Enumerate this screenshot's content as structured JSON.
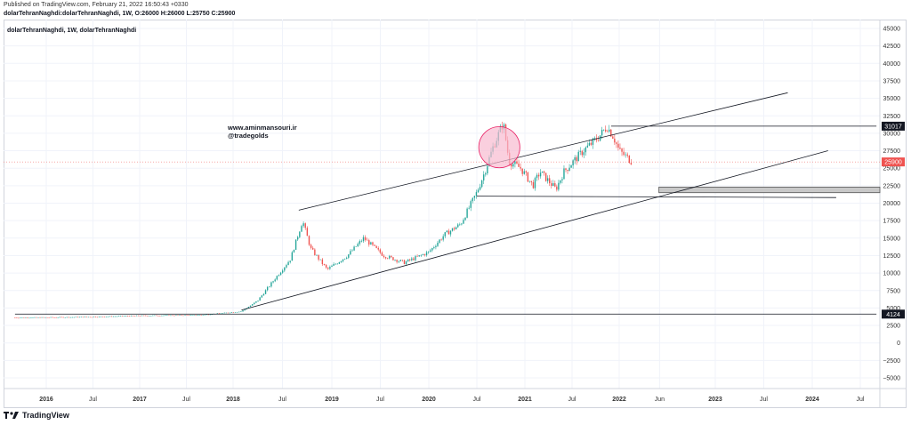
{
  "header": {
    "published": "Published on TradingView.com, February 21, 2022 16:50:43 +0330",
    "ohlc": "dolarTehranNaghdi:dolarTehranNaghdi, 1W, O:26000 H:26000 L:25750 C:25900"
  },
  "footer": {
    "brand": "TradingView"
  },
  "colors": {
    "up": "#26a69a",
    "down": "#ef5350",
    "line": "#131722",
    "circle_fill": "#f8bbd0",
    "circle_stroke": "#e91e63",
    "last_price_label": "#ef5350"
  },
  "chart_data": {
    "type": "candlestick",
    "title": "dolarTehranNaghdi, 1W, dolarTehranNaghdi",
    "watermark_lines": [
      "www.aminmansouri.ir",
      "@tradegolds"
    ],
    "x_tick_labels": [
      "2016",
      "Jul",
      "2017",
      "Jul",
      "2018",
      "Jul",
      "2019",
      "Jul",
      "2020",
      "Jul",
      "2021",
      "Jul",
      "2022",
      "Jun",
      "2023",
      "Jul",
      "2024",
      "Jul"
    ],
    "y_tick_labels": [
      "45000",
      "42500",
      "40000",
      "37500",
      "35000",
      "32500",
      "30000",
      "27500",
      "25000",
      "22500",
      "20000",
      "17500",
      "15000",
      "12500",
      "10000",
      "7500",
      "5000",
      "2500",
      "0",
      "−2500",
      "−5000"
    ],
    "ylim": [
      -6000,
      46000
    ],
    "grid": true,
    "last_price": 25900,
    "price_labels": [
      "31017",
      "25900",
      "4124"
    ],
    "close_series": {
      "start": "2015-09",
      "step": "1 week",
      "anchors": [
        [
          "2015-09-01",
          3600
        ],
        [
          "2016-06-01",
          3700
        ],
        [
          "2017-01-01",
          3900
        ],
        [
          "2017-09-01",
          4000
        ],
        [
          "2018-02-01",
          4500
        ],
        [
          "2018-04-01",
          6000
        ],
        [
          "2018-06-01",
          9000
        ],
        [
          "2018-08-01",
          12000
        ],
        [
          "2018-09-15",
          17500
        ],
        [
          "2018-10-15",
          13500
        ],
        [
          "2018-12-15",
          10500
        ],
        [
          "2019-03-01",
          12500
        ],
        [
          "2019-05-01",
          15000
        ],
        [
          "2019-07-15",
          12500
        ],
        [
          "2019-10-01",
          11500
        ],
        [
          "2020-01-01",
          13000
        ],
        [
          "2020-03-01",
          15500
        ],
        [
          "2020-05-01",
          17000
        ],
        [
          "2020-07-01",
          21500
        ],
        [
          "2020-08-01",
          24500
        ],
        [
          "2020-09-01",
          28000
        ],
        [
          "2020-10-10",
          31500
        ],
        [
          "2020-11-01",
          26000
        ],
        [
          "2020-12-15",
          25000
        ],
        [
          "2021-02-01",
          22500
        ],
        [
          "2021-03-01",
          24500
        ],
        [
          "2021-05-01",
          22000
        ],
        [
          "2021-06-01",
          24500
        ],
        [
          "2021-08-15",
          27500
        ],
        [
          "2021-10-15",
          29500
        ],
        [
          "2021-11-15",
          31000
        ],
        [
          "2021-12-10",
          29500
        ],
        [
          "2022-01-01",
          27500
        ],
        [
          "2022-02-20",
          25900
        ]
      ]
    },
    "trendlines": [
      {
        "name": "channel-top",
        "from": [
          "2018-09-01",
          19000
        ],
        "to": [
          "2023-10-01",
          35800
        ]
      },
      {
        "name": "channel-bottom",
        "from": [
          "2018-02-01",
          4700
        ],
        "to": [
          "2024-03-01",
          27500
        ]
      },
      {
        "name": "horizontal-31017",
        "from": [
          "2021-12-01",
          31017
        ],
        "to": [
          "2024-09-01",
          31017
        ]
      },
      {
        "name": "horizontal-21000",
        "from": [
          "2020-07-01",
          21000
        ],
        "to": [
          "2024-04-01",
          20800
        ]
      },
      {
        "name": "horizontal-4124",
        "from": [
          "2015-09-01",
          4124
        ],
        "to": [
          "2024-09-01",
          4124
        ]
      }
    ],
    "zone": {
      "from": "2022-06-01",
      "to": "2024-09-01",
      "y": [
        21500,
        22300
      ]
    },
    "highlight_circle": {
      "center": [
        "2020-09-25",
        28000
      ],
      "radius_price": 3000
    }
  }
}
